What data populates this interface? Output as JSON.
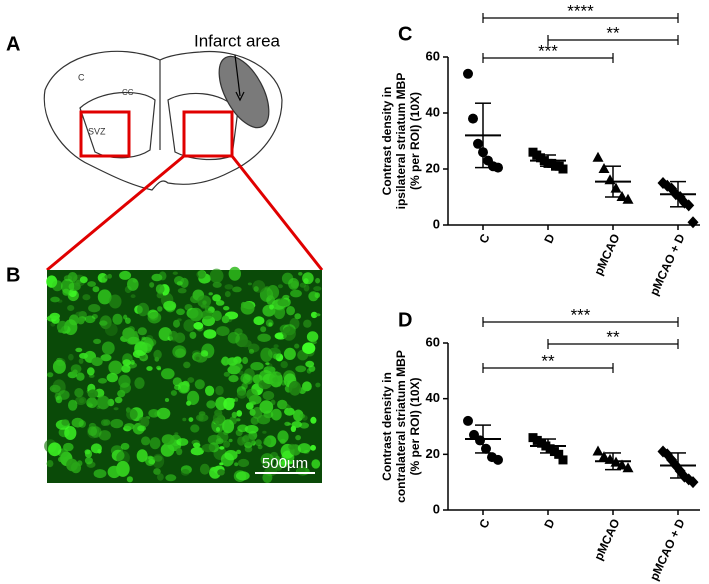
{
  "panels": {
    "a_letter": "A",
    "b_letter": "B",
    "infarct_label": "Infarct area",
    "cortex_label": "C",
    "cc_label": "CC",
    "svz_label": "SVZ",
    "scale_label": "500µm"
  },
  "chart_data": [
    {
      "type": "dotplot",
      "title": "C",
      "ylabel": [
        "Contrast density in",
        "ipsilateral striatum MBP",
        "(% per ROI) (10X)"
      ],
      "ylim": [
        0,
        60
      ],
      "yticks": [
        0,
        20,
        40,
        60
      ],
      "groups": [
        {
          "label": "C",
          "marker": "circle",
          "points": [
            54,
            38,
            29,
            26,
            23,
            21,
            20.5
          ],
          "mean": 32,
          "sd": 11.5
        },
        {
          "label": "D",
          "marker": "square",
          "points": [
            26,
            25,
            24,
            23,
            22,
            22,
            21,
            21,
            20
          ],
          "mean": 23,
          "sd": 2
        },
        {
          "label": "pMCAO",
          "marker": "triangle",
          "points": [
            24,
            20,
            16,
            13,
            10,
            9
          ],
          "mean": 15.5,
          "sd": 5.5
        },
        {
          "label": "pMCAO + D",
          "marker": "diamond",
          "points": [
            15,
            14,
            13,
            11,
            10,
            8,
            7,
            1
          ],
          "mean": 11,
          "sd": 4.5
        }
      ],
      "brackets": [
        {
          "from": "C",
          "to": "pMCAO + D",
          "label": "****"
        },
        {
          "from": "D",
          "to": "pMCAO + D",
          "label": "**"
        },
        {
          "from": "C",
          "to": "pMCAO",
          "label": "***"
        }
      ]
    },
    {
      "type": "dotplot",
      "title": "D",
      "ylabel": [
        "Contrast density in",
        "contralateral striatum MBP",
        "(% per ROI) (10X)"
      ],
      "ylim": [
        0,
        60
      ],
      "yticks": [
        0,
        20,
        40,
        60
      ],
      "groups": [
        {
          "label": "C",
          "marker": "circle",
          "points": [
            32,
            27,
            25,
            22,
            19,
            18
          ],
          "mean": 25.5,
          "sd": 5
        },
        {
          "label": "D",
          "marker": "square",
          "points": [
            26,
            25,
            24,
            23,
            22,
            21,
            20,
            18
          ],
          "mean": 23,
          "sd": 2.5
        },
        {
          "label": "pMCAO",
          "marker": "triangle",
          "points": [
            21,
            19,
            18,
            17,
            16,
            15
          ],
          "mean": 17.5,
          "sd": 3
        },
        {
          "label": "pMCAO + D",
          "marker": "diamond",
          "points": [
            21,
            20,
            18,
            16,
            14,
            12,
            11,
            10
          ],
          "mean": 16,
          "sd": 4.5
        }
      ],
      "brackets": [
        {
          "from": "C",
          "to": "pMCAO + D",
          "label": "***"
        },
        {
          "from": "D",
          "to": "pMCAO + D",
          "label": "**"
        },
        {
          "from": "C",
          "to": "pMCAO",
          "label": "**"
        }
      ]
    }
  ]
}
